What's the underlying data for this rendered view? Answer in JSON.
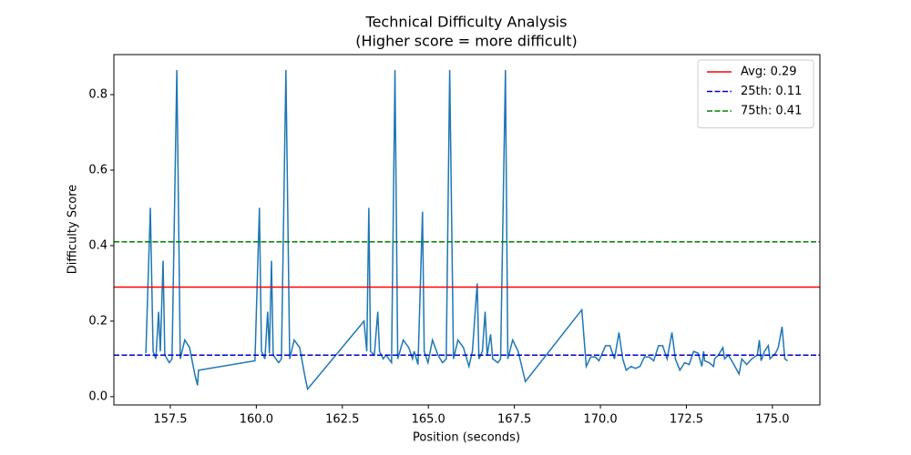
{
  "chart_data": {
    "type": "line",
    "title": "Technical Difficulty Analysis",
    "subtitle": "(Higher score = more difficult)",
    "x_label": "Position (seconds)",
    "y_label": "Difficulty Score",
    "xlim": [
      155.86,
      176.38
    ],
    "ylim": [
      -0.022,
      0.906
    ],
    "xticks": [
      157.5,
      {
        "value": 160,
        "label": "160.0"
      },
      162.5,
      {
        "value": 165,
        "label": "165.0"
      },
      167.5,
      {
        "value": 170,
        "label": "170.0"
      },
      172.5,
      {
        "value": 175,
        "label": "175.0"
      }
    ],
    "yticks": [
      {
        "value": 0,
        "label": "0.0"
      },
      0.2,
      0.4,
      0.6,
      0.8
    ],
    "x": [
      156.79,
      156.92,
      157.0,
      157.08,
      157.16,
      157.21,
      157.29,
      157.34,
      157.47,
      157.55,
      157.69,
      157.79,
      157.92,
      158.06,
      158.21,
      158.29,
      158.32,
      159.96,
      160.09,
      160.15,
      160.25,
      160.33,
      160.38,
      160.44,
      160.49,
      160.65,
      160.73,
      160.86,
      160.97,
      161.1,
      161.26,
      161.42,
      161.49,
      163.13,
      163.21,
      163.27,
      163.32,
      163.43,
      163.53,
      163.58,
      163.69,
      163.77,
      163.93,
      164.03,
      164.11,
      164.27,
      164.43,
      164.54,
      164.59,
      164.7,
      164.83,
      164.88,
      164.99,
      165.12,
      165.28,
      165.41,
      165.52,
      165.62,
      165.73,
      165.86,
      166.02,
      166.18,
      166.28,
      166.42,
      166.47,
      166.57,
      166.65,
      166.71,
      166.81,
      166.87,
      167.02,
      167.1,
      167.24,
      167.31,
      167.45,
      167.61,
      167.82,
      169.46,
      169.59,
      169.72,
      169.85,
      169.96,
      170.15,
      170.28,
      170.41,
      170.54,
      170.65,
      170.75,
      170.89,
      171.02,
      171.15,
      171.28,
      171.42,
      171.55,
      171.69,
      171.81,
      171.94,
      172.08,
      172.18,
      172.31,
      172.45,
      172.58,
      172.71,
      172.84,
      172.95,
      173.0,
      173.03,
      173.16,
      173.29,
      173.32,
      173.43,
      173.56,
      173.61,
      173.72,
      173.85,
      174.03,
      174.11,
      174.25,
      174.4,
      174.56,
      174.62,
      174.67,
      174.77,
      174.88,
      174.93,
      175.09,
      175.17,
      175.28,
      175.36,
      175.44
    ],
    "series": [
      {
        "color": "#1f77b4",
        "values": [
          0.115,
          0.5,
          0.12,
          0.1,
          0.225,
          0.12,
          0.36,
          0.11,
          0.09,
          0.1,
          0.865,
          0.1,
          0.15,
          0.13,
          0.06,
          0.03,
          0.07,
          0.095,
          0.5,
          0.12,
          0.1,
          0.225,
          0.115,
          0.36,
          0.11,
          0.09,
          0.1,
          0.865,
          0.1,
          0.15,
          0.13,
          0.05,
          0.02,
          0.2,
          0.12,
          0.5,
          0.12,
          0.11,
          0.225,
          0.12,
          0.1,
          0.11,
          0.09,
          0.865,
          0.1,
          0.15,
          0.13,
          0.1,
          0.12,
          0.085,
          0.49,
          0.12,
          0.09,
          0.15,
          0.11,
          0.09,
          0.1,
          0.865,
          0.1,
          0.15,
          0.13,
          0.08,
          0.12,
          0.3,
          0.1,
          0.12,
          0.225,
          0.11,
          0.165,
          0.1,
          0.09,
          0.1,
          0.865,
          0.1,
          0.15,
          0.12,
          0.04,
          0.23,
          0.08,
          0.105,
          0.105,
          0.095,
          0.135,
          0.135,
          0.1,
          0.17,
          0.1,
          0.07,
          0.08,
          0.075,
          0.08,
          0.105,
          0.105,
          0.095,
          0.135,
          0.135,
          0.1,
          0.17,
          0.1,
          0.07,
          0.09,
          0.085,
          0.12,
          0.115,
          0.08,
          0.12,
          0.095,
          0.09,
          0.08,
          0.1,
          0.11,
          0.13,
          0.1,
          0.11,
          0.09,
          0.06,
          0.1,
          0.085,
          0.1,
          0.11,
          0.15,
          0.095,
          0.12,
          0.135,
          0.1,
          0.115,
          0.13,
          0.185,
          0.1,
          0.095
        ]
      }
    ],
    "reference_lines": [
      {
        "name": "Avg: 0.29",
        "value": 0.29,
        "color": "#ff0000",
        "dashed": false
      },
      {
        "name": "25th: 0.11",
        "value": 0.11,
        "color": "#0000cc",
        "dashed": true
      },
      {
        "name": "75th: 0.41",
        "value": 0.41,
        "color": "#008000",
        "dashed": true
      }
    ],
    "legend": "upper-right"
  }
}
